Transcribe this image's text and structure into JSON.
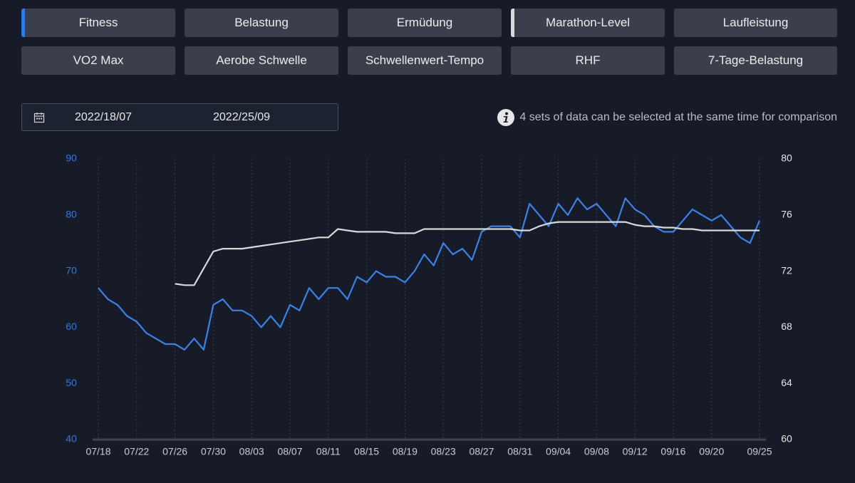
{
  "buttons": [
    {
      "label": "Fitness",
      "marker": "#2f7ae5"
    },
    {
      "label": "Belastung"
    },
    {
      "label": "Ermüdung"
    },
    {
      "label": "Marathon-Level",
      "marker": "#d9d9d9"
    },
    {
      "label": "Laufleistung"
    },
    {
      "label": "VO2 Max"
    },
    {
      "label": "Aerobe Schwelle"
    },
    {
      "label": "Schwellenwert-Tempo"
    },
    {
      "label": "RHF"
    },
    {
      "label": "7-Tage-Belastung"
    }
  ],
  "date_range": {
    "start": "2022/18/07",
    "end": "2022/25/09"
  },
  "info": "4 sets of data can be selected at the same time for comparison",
  "chart_data": {
    "type": "line",
    "categories": [
      "07/18",
      null,
      null,
      null,
      "07/22",
      null,
      null,
      null,
      "07/26",
      null,
      null,
      null,
      "07/30",
      null,
      null,
      null,
      "08/03",
      null,
      null,
      null,
      "08/07",
      null,
      null,
      null,
      "08/11",
      null,
      null,
      null,
      "08/15",
      null,
      null,
      null,
      "08/19",
      null,
      null,
      null,
      "08/23",
      null,
      null,
      null,
      "08/27",
      null,
      null,
      null,
      "08/31",
      null,
      null,
      null,
      "09/04",
      null,
      null,
      null,
      "09/08",
      null,
      null,
      null,
      "09/12",
      null,
      null,
      null,
      "09/16",
      null,
      null,
      null,
      "09/20",
      null,
      null,
      null,
      null,
      "09/25"
    ],
    "series": [
      {
        "name": "Fitness",
        "color": "#3b82e6",
        "axis": "y",
        "values": [
          67,
          65,
          64,
          62,
          61,
          59,
          58,
          57,
          57,
          56,
          58,
          56,
          64,
          65,
          63,
          63,
          62,
          60,
          62,
          60,
          64,
          63,
          67,
          65,
          67,
          67,
          65,
          69,
          68,
          70,
          69,
          69,
          68,
          70,
          73,
          71,
          75,
          73,
          74,
          72,
          77,
          78,
          78,
          78,
          76,
          82,
          80,
          78,
          82,
          80,
          83,
          81,
          82,
          80,
          78,
          83,
          81,
          80,
          78,
          77,
          77,
          79,
          81,
          80,
          79,
          80,
          78,
          76,
          75,
          79
        ]
      },
      {
        "name": "Marathon-Level",
        "color": "#d9d9d9",
        "axis": "y2",
        "values": [
          null,
          null,
          null,
          null,
          null,
          null,
          null,
          null,
          71.1,
          71.0,
          71.0,
          72.2,
          73.4,
          73.6,
          73.6,
          73.6,
          73.7,
          73.8,
          73.9,
          74.0,
          74.1,
          74.2,
          74.3,
          74.4,
          74.4,
          75.0,
          74.9,
          74.8,
          74.8,
          74.8,
          74.8,
          74.7,
          74.7,
          74.7,
          75.0,
          75.0,
          75.0,
          75.0,
          75.0,
          75.0,
          75.0,
          75.0,
          75.0,
          75.0,
          74.9,
          74.9,
          75.2,
          75.4,
          75.5,
          75.5,
          75.5,
          75.5,
          75.5,
          75.5,
          75.5,
          75.5,
          75.3,
          75.2,
          75.2,
          75.1,
          75.1,
          75.0,
          75.0,
          74.9,
          74.9,
          74.9,
          74.9,
          74.9,
          74.9,
          74.9
        ]
      }
    ],
    "ylim": [
      40,
      90
    ],
    "yticks": [
      40,
      50,
      60,
      70,
      80,
      90
    ],
    "ytick_color": "#2f7ae5",
    "y2lim": [
      60,
      80
    ],
    "y2ticks": [
      60,
      64,
      68,
      72,
      76,
      80
    ],
    "y2tick_color": "#e6e6e6",
    "xgrid": true
  }
}
